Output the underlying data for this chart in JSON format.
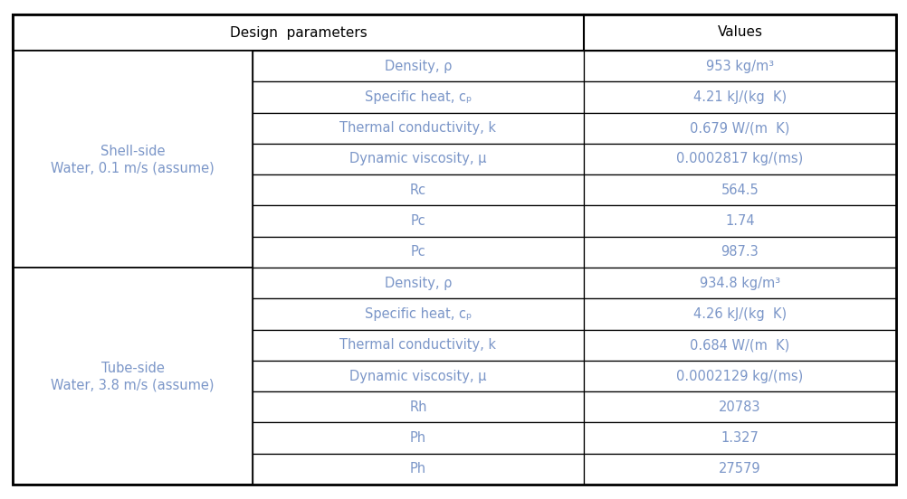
{
  "title_col1": "Design  parameters",
  "title_col2": "Values",
  "shell_label_line1": "Shell-side",
  "shell_label_line2": "Water, 0.1 m/s (assume)",
  "tube_label_line1": "Tube-side",
  "tube_label_line2": "Water, 3.8 m/s (assume)",
  "shell_rows": [
    {
      "param": "Density, ρ",
      "value": "953 kg/m³"
    },
    {
      "param": "Specific heat, cₚ",
      "value": "4.21 kJ/(kg  K)"
    },
    {
      "param": "Thermal conductivity, k",
      "value": "0.679 W/(m  K)"
    },
    {
      "param": "Dynamic viscosity, μ",
      "value": "0.0002817 kg/(ms)"
    },
    {
      "param": "Rc",
      "value": "564.5"
    },
    {
      "param": "Pc",
      "value": "1.74"
    },
    {
      "param": "Pc",
      "value": "987.3"
    }
  ],
  "tube_rows": [
    {
      "param": "Density, ρ",
      "value": "934.8 kg/m³"
    },
    {
      "param": "Specific heat, cₚ",
      "value": "4.26 kJ/(kg  K)"
    },
    {
      "param": "Thermal conductivity, k",
      "value": "0.684 W/(m  K)"
    },
    {
      "param": "Dynamic viscosity, μ",
      "value": "0.0002129 kg/(ms)"
    },
    {
      "param": "Rh",
      "value": "20783"
    },
    {
      "param": "Ph",
      "value": "1.327"
    },
    {
      "param": "Ph",
      "value": "27579"
    }
  ],
  "cell_bg": "#FFFFFF",
  "border_color": "#000000",
  "text_color": "#7B96C8",
  "header_text_color": "#000000",
  "label_text_color": "#7B96C8",
  "font_size_data": 10.5,
  "font_size_header": 11,
  "font_size_label": 10.5
}
